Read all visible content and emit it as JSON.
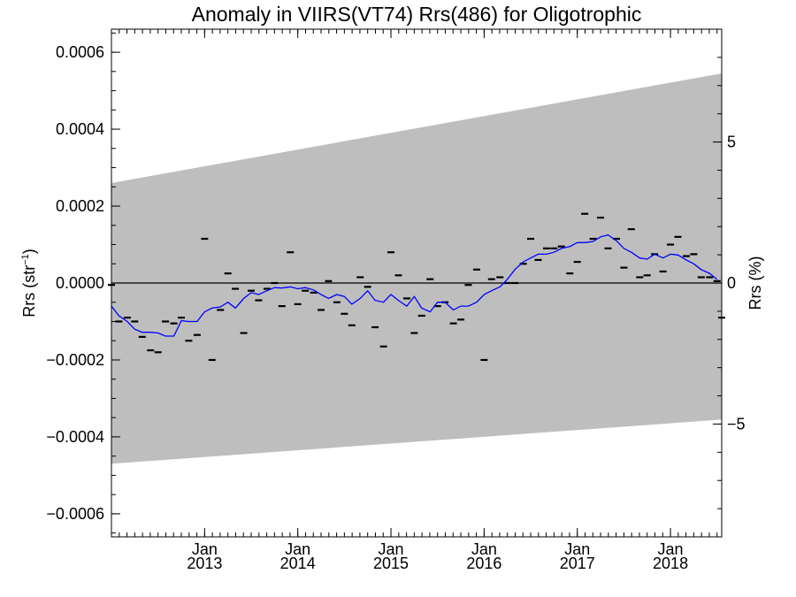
{
  "chart_data": {
    "type": "line",
    "title": "Anomaly in VIIRS(VT74) Rrs(486) for Oligotrophic",
    "ylabel_left": {
      "base": "Rrs (str",
      "sup": "−1",
      "close": ")"
    },
    "ylabel_right": "Rrs (%)",
    "xlim": [
      2012.0,
      2018.55
    ],
    "ylim_left": [
      -0.00066,
      0.00066
    ],
    "ylim_right": [
      -9.0,
      9.0
    ],
    "x_ticks": [
      {
        "x": 2013.0,
        "month": "Jan",
        "year": "2013"
      },
      {
        "x": 2014.0,
        "month": "Jan",
        "year": "2014"
      },
      {
        "x": 2015.0,
        "month": "Jan",
        "year": "2015"
      },
      {
        "x": 2016.0,
        "month": "Jan",
        "year": "2016"
      },
      {
        "x": 2017.0,
        "month": "Jan",
        "year": "2017"
      },
      {
        "x": 2018.0,
        "month": "Jan",
        "year": "2018"
      }
    ],
    "y_ticks_left": [
      {
        "value": 0.0006,
        "label": "0.0006"
      },
      {
        "value": 0.0004,
        "label": "0.0004"
      },
      {
        "value": 0.0002,
        "label": "0.0002"
      },
      {
        "value": 0.0,
        "label": "0.0000"
      },
      {
        "value": -0.0002,
        "label": "−0.0002"
      },
      {
        "value": -0.0004,
        "label": "−0.0004"
      },
      {
        "value": -0.0006,
        "label": "−0.0006"
      }
    ],
    "y_ticks_right": [
      {
        "value": 5,
        "label": "5"
      },
      {
        "value": 0,
        "label": "0"
      },
      {
        "value": -5,
        "label": "−5"
      }
    ],
    "uncertainty_band": {
      "x": [
        2012.0,
        2018.55
      ],
      "upper": [
        0.00026,
        0.000545
      ],
      "lower": [
        -0.00047,
        -0.000355
      ],
      "color": "#bebebe"
    },
    "zero_line": 0.0,
    "series": [
      {
        "style": "markers",
        "color": "#000000",
        "x": [
          2012.0,
          2012.08,
          2012.17,
          2012.25,
          2012.33,
          2012.42,
          2012.5,
          2012.58,
          2012.67,
          2012.75,
          2012.83,
          2012.92,
          2013.0,
          2013.08,
          2013.17,
          2013.25,
          2013.33,
          2013.42,
          2013.5,
          2013.58,
          2013.67,
          2013.75,
          2013.83,
          2013.92,
          2014.0,
          2014.08,
          2014.17,
          2014.25,
          2014.33,
          2014.42,
          2014.5,
          2014.58,
          2014.67,
          2014.75,
          2014.83,
          2014.92,
          2015.0,
          2015.08,
          2015.17,
          2015.25,
          2015.33,
          2015.42,
          2015.5,
          2015.58,
          2015.67,
          2015.75,
          2015.83,
          2015.92,
          2016.0,
          2016.08,
          2016.17,
          2016.25,
          2016.33,
          2016.42,
          2016.5,
          2016.58,
          2016.67,
          2016.75,
          2016.83,
          2016.92,
          2017.0,
          2017.08,
          2017.17,
          2017.25,
          2017.33,
          2017.42,
          2017.5,
          2017.58,
          2017.67,
          2017.75,
          2017.83,
          2017.92,
          2018.0,
          2018.08,
          2018.17,
          2018.25,
          2018.33,
          2018.42,
          2018.5,
          2018.55
        ],
        "values": [
          -5e-06,
          -0.0001,
          -9e-05,
          -0.0001,
          -0.00014,
          -0.000175,
          -0.00018,
          -0.0001,
          -0.000105,
          -9e-05,
          -0.00015,
          -0.000135,
          0.000115,
          -0.0002,
          -7e-05,
          2.5e-05,
          -1.5e-05,
          -0.00013,
          -2e-05,
          -4.5e-05,
          -1.5e-05,
          0.0,
          -6e-05,
          8e-05,
          -5.5e-05,
          -2e-05,
          -2.5e-05,
          -7e-05,
          5e-06,
          -5e-05,
          -8e-05,
          -0.00011,
          1.5e-05,
          -1e-05,
          -0.000115,
          -0.000165,
          8e-05,
          2e-05,
          -4e-05,
          -0.00013,
          -8.5e-05,
          1e-05,
          -6e-05,
          -5e-05,
          -0.000105,
          -9.5e-05,
          -5e-06,
          3.5e-05,
          -0.0002,
          1e-05,
          1.5e-05,
          0.0,
          0.0,
          5e-05,
          0.000115,
          6e-05,
          9e-05,
          9e-05,
          9.5e-05,
          2.5e-05,
          5.5e-05,
          0.00018,
          0.000115,
          0.00017,
          9e-05,
          0.000115,
          4e-05,
          0.00014,
          1.5e-05,
          2e-05,
          7.5e-05,
          3e-05,
          0.0001,
          0.00012,
          7e-05,
          7.5e-05,
          1.5e-05,
          1.5e-05,
          5e-06,
          -9e-05
        ]
      },
      {
        "style": "line",
        "color": "#0000ff",
        "x": [
          2012.0,
          2012.08,
          2012.17,
          2012.25,
          2012.33,
          2012.42,
          2012.5,
          2012.58,
          2012.67,
          2012.75,
          2012.83,
          2012.92,
          2013.0,
          2013.08,
          2013.17,
          2013.25,
          2013.33,
          2013.42,
          2013.5,
          2013.58,
          2013.67,
          2013.75,
          2013.83,
          2013.92,
          2014.0,
          2014.08,
          2014.17,
          2014.25,
          2014.33,
          2014.42,
          2014.5,
          2014.58,
          2014.67,
          2014.75,
          2014.83,
          2014.92,
          2015.0,
          2015.08,
          2015.17,
          2015.25,
          2015.33,
          2015.42,
          2015.5,
          2015.58,
          2015.67,
          2015.75,
          2015.83,
          2015.92,
          2016.0,
          2016.08,
          2016.17,
          2016.25,
          2016.33,
          2016.42,
          2016.5,
          2016.58,
          2016.67,
          2016.75,
          2016.83,
          2016.92,
          2017.0,
          2017.08,
          2017.17,
          2017.25,
          2017.33,
          2017.42,
          2017.5,
          2017.58,
          2017.67,
          2017.75,
          2017.83,
          2017.92,
          2018.0,
          2018.08,
          2018.17,
          2018.25,
          2018.33,
          2018.42,
          2018.5
        ],
        "values": [
          -6e-05,
          -8.5e-05,
          -0.0001,
          -0.00012,
          -0.000128,
          -0.000128,
          -0.00013,
          -0.000138,
          -0.000138,
          -9.8e-05,
          -0.0001,
          -0.0001,
          -7.5e-05,
          -6.5e-05,
          -6.2e-05,
          -5e-05,
          -6.5e-05,
          -4e-05,
          -2.5e-05,
          -3e-05,
          -2e-05,
          -1.2e-05,
          -1.3e-05,
          -1e-05,
          -1.5e-05,
          -1.2e-05,
          -1.8e-05,
          -3e-05,
          -4e-05,
          -3e-05,
          -3.5e-05,
          -5.5e-05,
          -4e-05,
          -2e-05,
          -4.5e-05,
          -5e-05,
          -3e-05,
          -4.5e-05,
          -6e-05,
          -3.5e-05,
          -6.5e-05,
          -7.5e-05,
          -5e-05,
          -5e-05,
          -7e-05,
          -6e-05,
          -6e-05,
          -5e-05,
          -3e-05,
          -2e-05,
          -1e-05,
          1e-05,
          3.5e-05,
          5.5e-05,
          6.5e-05,
          7.5e-05,
          7.5e-05,
          8e-05,
          9e-05,
          9.5e-05,
          0.000105,
          0.000105,
          0.000108,
          0.00012,
          0.000125,
          0.00011,
          9e-05,
          8e-05,
          6.5e-05,
          6.2e-05,
          7.5e-05,
          6.5e-05,
          7.5e-05,
          7.3e-05,
          6e-05,
          5e-05,
          3.5e-05,
          2.5e-05,
          1e-05
        ]
      }
    ]
  }
}
